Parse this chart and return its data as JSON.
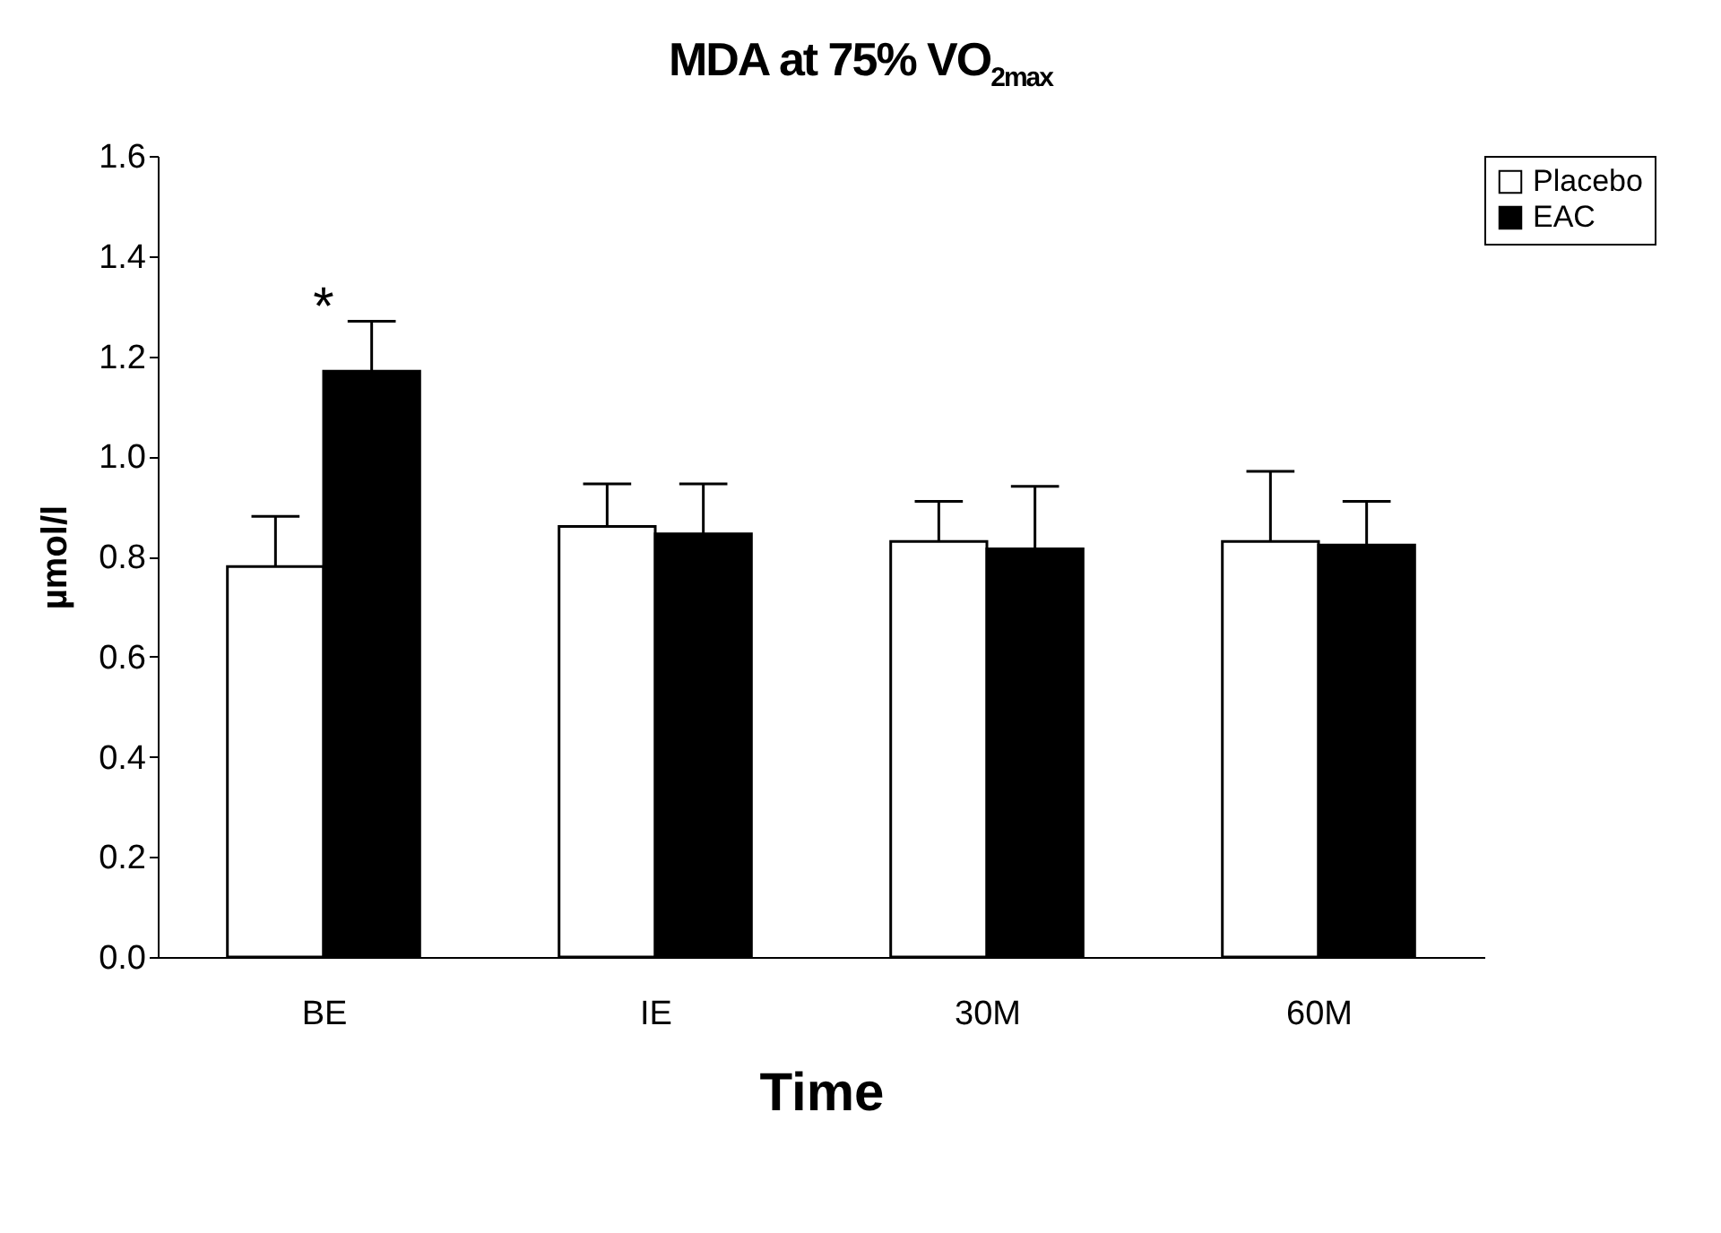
{
  "chart_data": {
    "type": "bar",
    "title": "MDA at 75% VO$_{2max}$",
    "xlabel": "Time",
    "ylabel": "µmol/l",
    "categories": [
      "BE",
      "IE",
      "30M",
      "60M"
    ],
    "series": [
      {
        "name": "Placebo",
        "color": "#ffffff",
        "values": [
          0.78,
          0.86,
          0.83,
          0.83
        ],
        "errors": [
          [
            0.78,
            0.88
          ],
          [
            0.86,
            0.945
          ],
          [
            0.83,
            0.91
          ],
          [
            0.83,
            0.97
          ]
        ]
      },
      {
        "name": "EAC",
        "color": "#000000",
        "values": [
          1.17,
          0.845,
          0.815,
          0.823
        ],
        "errors": [
          [
            1.17,
            1.27
          ],
          [
            0.845,
            0.945
          ],
          [
            0.815,
            0.94
          ],
          [
            0.823,
            0.91
          ]
        ]
      }
    ],
    "ylim": [
      0,
      1.6
    ],
    "yticks": [
      {
        "value": 0,
        "label": "0.0"
      },
      {
        "value": 0.2,
        "label": "0.2"
      },
      {
        "value": 0.4,
        "label": "0.4"
      },
      {
        "value": 0.6,
        "label": "0.6"
      },
      {
        "value": 0.8,
        "label": "0.8"
      },
      {
        "value": 1,
        "label": "1.0"
      },
      {
        "value": 1.2,
        "label": "1.2"
      },
      {
        "value": 1.4,
        "label": "1.4"
      },
      {
        "value": 1.6,
        "label": "1.6"
      }
    ],
    "annotations": [
      "*"
    ],
    "legend": "top right",
    "grid": false
  }
}
